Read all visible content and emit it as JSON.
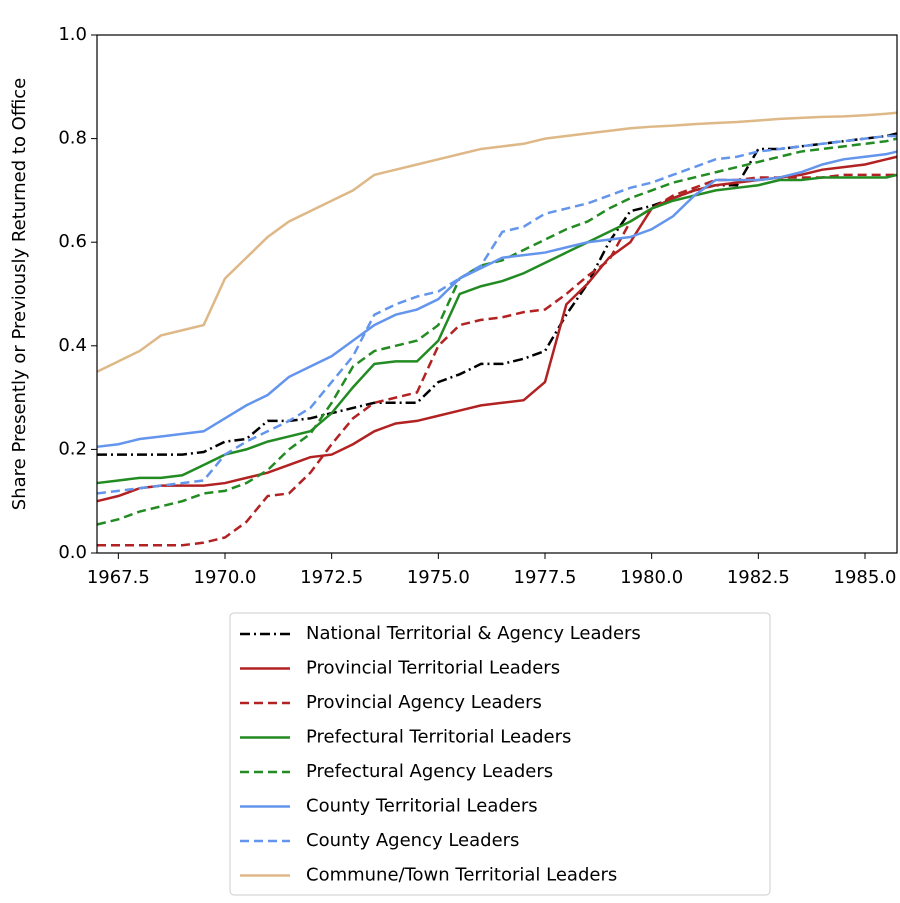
{
  "chart_data": {
    "type": "line",
    "y_label": "Share Presently or Previously Returned to Office",
    "x": [
      1967,
      1967.5,
      1968,
      1968.5,
      1969,
      1969.5,
      1970,
      1970.5,
      1971,
      1971.5,
      1972,
      1972.5,
      1973,
      1973.5,
      1974,
      1974.5,
      1975,
      1975.5,
      1976,
      1976.5,
      1977,
      1977.5,
      1978,
      1978.5,
      1979,
      1979.5,
      1980,
      1980.5,
      1981,
      1981.5,
      1982,
      1982.5,
      1983,
      1983.5,
      1984,
      1984.5,
      1985,
      1985.5,
      1985.75
    ],
    "xlim": [
      1967,
      1985.75
    ],
    "xticks": [
      1967.5,
      {
        "value": 1970,
        "label": "1970.0"
      },
      1972.5,
      {
        "value": 1975,
        "label": "1975.0"
      },
      1977.5,
      {
        "value": 1980,
        "label": "1980.0"
      },
      1982.5,
      {
        "value": 1985,
        "label": "1985.0"
      }
    ],
    "ylim": [
      0,
      1
    ],
    "yticks": [
      {
        "value": 0,
        "label": "0.0"
      },
      0.2,
      0.4,
      0.6,
      0.8,
      {
        "value": 1,
        "label": "1.0"
      }
    ],
    "grid": false,
    "legend": "below",
    "series": [
      {
        "name": "National Territorial & Agency Leaders",
        "color": "#000000",
        "dash": "dashdot",
        "values": [
          0.19,
          0.19,
          0.19,
          0.19,
          0.19,
          0.195,
          0.215,
          0.22,
          0.255,
          0.255,
          0.26,
          0.27,
          0.28,
          0.29,
          0.29,
          0.29,
          0.33,
          0.345,
          0.365,
          0.365,
          0.375,
          0.39,
          0.46,
          0.52,
          0.6,
          0.66,
          0.67,
          0.685,
          0.7,
          0.71,
          0.71,
          0.78,
          0.78,
          0.785,
          0.79,
          0.795,
          0.8,
          0.805,
          0.81
        ]
      },
      {
        "name": "Provincial Territorial Leaders",
        "color": "#b22222",
        "dash": "solid",
        "values": [
          0.1,
          0.11,
          0.125,
          0.13,
          0.13,
          0.13,
          0.135,
          0.145,
          0.155,
          0.17,
          0.185,
          0.19,
          0.21,
          0.235,
          0.25,
          0.255,
          0.265,
          0.275,
          0.285,
          0.29,
          0.295,
          0.33,
          0.48,
          0.52,
          0.57,
          0.6,
          0.665,
          0.685,
          0.7,
          0.71,
          0.715,
          0.72,
          0.725,
          0.73,
          0.74,
          0.745,
          0.75,
          0.76,
          0.765
        ]
      },
      {
        "name": "Provincial Agency Leaders",
        "color": "#b22222",
        "dash": "dashed",
        "values": [
          0.015,
          0.015,
          0.015,
          0.015,
          0.015,
          0.02,
          0.03,
          0.06,
          0.11,
          0.115,
          0.155,
          0.21,
          0.26,
          0.29,
          0.3,
          0.31,
          0.4,
          0.44,
          0.45,
          0.455,
          0.465,
          0.47,
          0.5,
          0.535,
          0.565,
          0.64,
          0.665,
          0.69,
          0.705,
          0.72,
          0.72,
          0.725,
          0.725,
          0.725,
          0.725,
          0.73,
          0.73,
          0.73,
          0.73
        ]
      },
      {
        "name": "Prefectural Territorial Leaders",
        "color": "#228b22",
        "dash": "solid",
        "values": [
          0.135,
          0.14,
          0.145,
          0.145,
          0.15,
          0.17,
          0.19,
          0.2,
          0.215,
          0.225,
          0.235,
          0.27,
          0.32,
          0.365,
          0.37,
          0.37,
          0.41,
          0.5,
          0.515,
          0.525,
          0.54,
          0.56,
          0.58,
          0.6,
          0.62,
          0.64,
          0.665,
          0.68,
          0.69,
          0.7,
          0.705,
          0.71,
          0.72,
          0.72,
          0.725,
          0.725,
          0.725,
          0.725,
          0.73
        ]
      },
      {
        "name": "Prefectural Agency Leaders",
        "color": "#228b22",
        "dash": "dashed",
        "values": [
          0.055,
          0.065,
          0.08,
          0.09,
          0.1,
          0.115,
          0.12,
          0.135,
          0.16,
          0.2,
          0.23,
          0.29,
          0.36,
          0.39,
          0.4,
          0.41,
          0.44,
          0.53,
          0.555,
          0.565,
          0.585,
          0.605,
          0.625,
          0.64,
          0.665,
          0.685,
          0.7,
          0.715,
          0.725,
          0.735,
          0.745,
          0.755,
          0.765,
          0.775,
          0.78,
          0.785,
          0.79,
          0.795,
          0.8
        ]
      },
      {
        "name": "County Territorial Leaders",
        "color": "#6495ed",
        "dash": "solid",
        "values": [
          0.205,
          0.21,
          0.22,
          0.225,
          0.23,
          0.235,
          0.26,
          0.285,
          0.305,
          0.34,
          0.36,
          0.38,
          0.41,
          0.44,
          0.46,
          0.47,
          0.49,
          0.53,
          0.55,
          0.57,
          0.575,
          0.58,
          0.59,
          0.6,
          0.605,
          0.61,
          0.625,
          0.65,
          0.69,
          0.72,
          0.72,
          0.72,
          0.725,
          0.735,
          0.75,
          0.76,
          0.765,
          0.77,
          0.775
        ]
      },
      {
        "name": "County Agency Leaders",
        "color": "#6495ed",
        "dash": "dashed",
        "values": [
          0.115,
          0.12,
          0.125,
          0.13,
          0.135,
          0.14,
          0.19,
          0.215,
          0.235,
          0.255,
          0.28,
          0.33,
          0.38,
          0.46,
          0.48,
          0.495,
          0.505,
          0.53,
          0.555,
          0.62,
          0.63,
          0.655,
          0.665,
          0.675,
          0.69,
          0.705,
          0.715,
          0.73,
          0.745,
          0.76,
          0.765,
          0.775,
          0.78,
          0.785,
          0.79,
          0.795,
          0.8,
          0.805,
          0.805
        ]
      },
      {
        "name": "Commune/Town Territorial Leaders",
        "color": "#deb887",
        "dash": "solid",
        "values": [
          0.35,
          0.37,
          0.39,
          0.42,
          0.43,
          0.44,
          0.53,
          0.57,
          0.61,
          0.64,
          0.66,
          0.68,
          0.7,
          0.73,
          0.74,
          0.75,
          0.76,
          0.77,
          0.78,
          0.785,
          0.79,
          0.8,
          0.805,
          0.81,
          0.815,
          0.82,
          0.823,
          0.825,
          0.828,
          0.83,
          0.832,
          0.835,
          0.838,
          0.84,
          0.842,
          0.843,
          0.845,
          0.848,
          0.85
        ]
      }
    ]
  }
}
